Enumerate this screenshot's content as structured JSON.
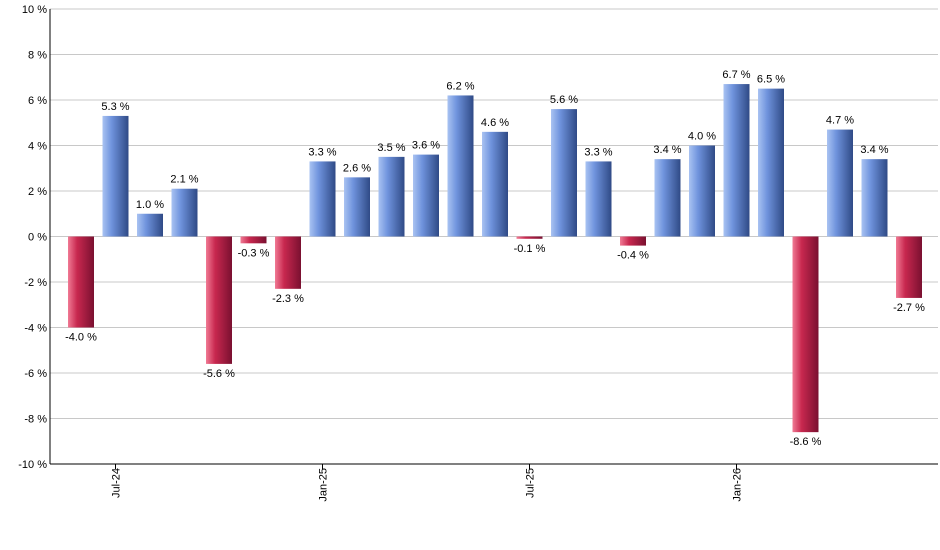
{
  "chart_data": {
    "type": "bar",
    "title": "",
    "xlabel": "",
    "ylabel": "",
    "ylim": [
      -10,
      10
    ],
    "ytick_step": 2,
    "y_unit_suffix": " %",
    "grid": true,
    "values": [
      -4.0,
      5.3,
      1.0,
      2.1,
      -5.6,
      -0.3,
      -2.3,
      3.3,
      2.6,
      3.5,
      3.6,
      6.2,
      4.6,
      -0.1,
      5.6,
      3.3,
      -0.4,
      3.4,
      4.0,
      6.7,
      6.5,
      -8.6,
      4.7,
      3.4,
      -2.7
    ],
    "data_labels": [
      "-4.0 %",
      "5.3 %",
      "1.0 %",
      "2.1 %",
      "-5.6 %",
      "-0.3 %",
      "-2.3 %",
      "3.3 %",
      "2.6 %",
      "3.5 %",
      "3.6 %",
      "6.2 %",
      "4.6 %",
      "-0.1 %",
      "5.6 %",
      "3.3 %",
      "-0.4 %",
      "3.4 %",
      "4.0 %",
      "6.7 %",
      "6.5 %",
      "-8.6 %",
      "4.7 %",
      "3.4 %",
      "-2.7 %"
    ],
    "y_tick_labels": [
      "10 %",
      "8 %",
      "6 %",
      "4 %",
      "2 %",
      "0 %",
      "-2 %",
      "-4 %",
      "-6 %",
      "-8 %",
      "-10 %"
    ],
    "x_ticks": [
      {
        "label": "Jul-24",
        "index": 1
      },
      {
        "label": "Jan-25",
        "index": 7
      },
      {
        "label": "Jul-25",
        "index": 13
      },
      {
        "label": "Jan-26",
        "index": 19
      }
    ],
    "colors": {
      "positive_light": "#a9c3f2",
      "positive_mid": "#6f93dd",
      "positive_dark": "#2f4a86",
      "negative_light": "#f07a94",
      "negative_mid": "#c8284f",
      "negative_dark": "#7a1030"
    }
  }
}
